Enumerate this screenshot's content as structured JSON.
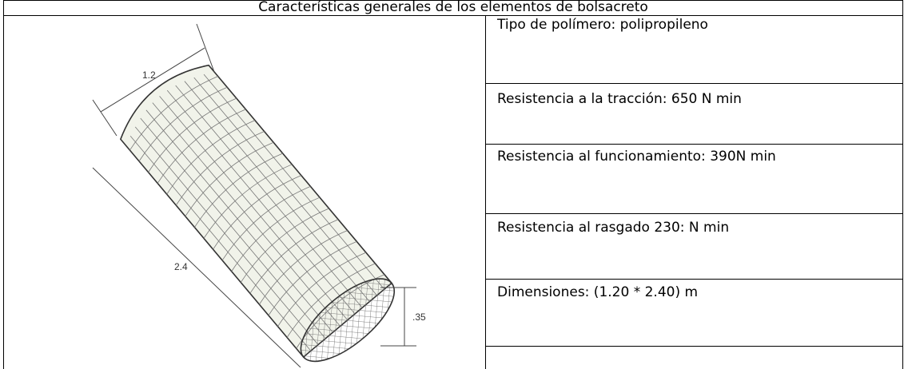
{
  "table": {
    "title": "Características generales de los elementos de bolsacreto",
    "rows": [
      "Tipo de polímero: polipropileno",
      "Resistencia a la tracción: 650 N min",
      "Resistencia al funcionamiento: 390N min",
      "Resistencia al rasgado 230: N min",
      "Dimensiones: (1.20 * 2.40) m"
    ]
  },
  "figure": {
    "labels": [
      "1.2",
      "2.4",
      ".35"
    ]
  }
}
